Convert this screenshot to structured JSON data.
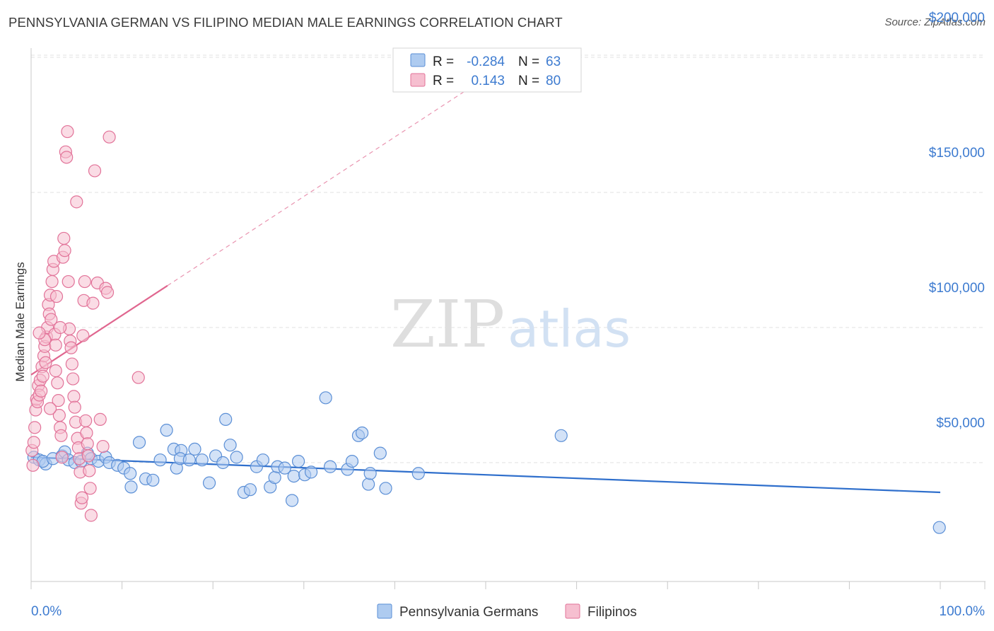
{
  "header": {
    "title": "PENNSYLVANIA GERMAN VS FILIPINO MEDIAN MALE EARNINGS CORRELATION CHART",
    "source": "Source: ZipAtlas.com"
  },
  "watermark": {
    "zip": "ZIP",
    "atlas": "atlas"
  },
  "colors": {
    "blue_fill": "#aecbf0",
    "blue_stroke": "#5b8fd6",
    "blue_line": "#2f6fcc",
    "pink_fill": "#f6bfd0",
    "pink_stroke": "#e27399",
    "pink_line": "#e0668f",
    "tick_label": "#3d7bd0",
    "grid": "#e2e2e2"
  },
  "stats": {
    "r_label": "R =",
    "n_label": "N =",
    "rows": [
      {
        "series": "blue",
        "r": "-0.284",
        "n": "63"
      },
      {
        "series": "pink",
        "r": "0.143",
        "n": "80"
      }
    ]
  },
  "chart_data": {
    "type": "scatter",
    "title": "PENNSYLVANIA GERMAN VS FILIPINO MEDIAN MALE EARNINGS CORRELATION CHART",
    "xlabel": "",
    "ylabel": "Median Male Earnings",
    "xlim": [
      0,
      100
    ],
    "ylim": [
      5000,
      215000
    ],
    "x_tick_labels": [
      "0.0%",
      "100.0%"
    ],
    "y_ticks": [
      50000,
      100000,
      150000,
      200000
    ],
    "y_tick_labels": [
      "$50,000",
      "$100,000",
      "$150,000",
      "$200,000"
    ],
    "grid": true,
    "legend_position": "bottom-center",
    "series": [
      {
        "name": "Pennsylvania Germans",
        "color": "#aecbf0",
        "trend": {
          "x": [
            0,
            100
          ],
          "y": [
            52000,
            39000
          ],
          "style": "solid"
        },
        "points": [
          [
            0.3,
            52000
          ],
          [
            0.9,
            51000
          ],
          [
            1.6,
            49500
          ],
          [
            1.3,
            50500
          ],
          [
            2.4,
            51500
          ],
          [
            3.4,
            52500
          ],
          [
            3.7,
            54000
          ],
          [
            4.1,
            51000
          ],
          [
            4.8,
            50000
          ],
          [
            5.5,
            50500
          ],
          [
            6.2,
            53500
          ],
          [
            6.6,
            51500
          ],
          [
            7.4,
            50500
          ],
          [
            8.2,
            52000
          ],
          [
            8.6,
            50000
          ],
          [
            9.5,
            49000
          ],
          [
            10.2,
            48000
          ],
          [
            10.9,
            46000
          ],
          [
            11.0,
            41000
          ],
          [
            11.9,
            57500
          ],
          [
            12.6,
            44000
          ],
          [
            13.4,
            43500
          ],
          [
            14.2,
            51000
          ],
          [
            14.9,
            62000
          ],
          [
            15.7,
            55000
          ],
          [
            16.0,
            48000
          ],
          [
            16.5,
            54500
          ],
          [
            16.4,
            51500
          ],
          [
            17.4,
            51000
          ],
          [
            18.0,
            55000
          ],
          [
            18.8,
            51000
          ],
          [
            19.6,
            42500
          ],
          [
            20.3,
            52500
          ],
          [
            21.1,
            50000
          ],
          [
            21.4,
            66000
          ],
          [
            21.9,
            56500
          ],
          [
            22.6,
            52000
          ],
          [
            23.4,
            39000
          ],
          [
            24.1,
            40000
          ],
          [
            24.8,
            48500
          ],
          [
            25.5,
            51000
          ],
          [
            26.3,
            41000
          ],
          [
            26.8,
            44500
          ],
          [
            27.1,
            48500
          ],
          [
            27.9,
            48000
          ],
          [
            28.7,
            36000
          ],
          [
            28.9,
            45000
          ],
          [
            29.4,
            50500
          ],
          [
            30.1,
            45500
          ],
          [
            30.8,
            46500
          ],
          [
            32.4,
            74000
          ],
          [
            32.9,
            48500
          ],
          [
            34.8,
            47500
          ],
          [
            35.3,
            50500
          ],
          [
            36.0,
            60000
          ],
          [
            36.4,
            61000
          ],
          [
            37.1,
            42000
          ],
          [
            37.3,
            46000
          ],
          [
            38.4,
            53500
          ],
          [
            39.0,
            40500
          ],
          [
            42.6,
            46000
          ],
          [
            58.3,
            60000
          ],
          [
            99.9,
            26000
          ]
        ]
      },
      {
        "name": "Filipinos",
        "color": "#f6bfd0",
        "trend": {
          "x": [
            0,
            15
          ],
          "y": [
            82500,
            115500
          ],
          "style": "solid",
          "extension": {
            "x": [
              15,
              50
            ],
            "y": [
              115500,
              192500
            ],
            "style": "dashed"
          }
        },
        "points": [
          [
            0.1,
            54500
          ],
          [
            0.2,
            49000
          ],
          [
            0.3,
            57500
          ],
          [
            0.4,
            63000
          ],
          [
            0.5,
            69500
          ],
          [
            0.6,
            73500
          ],
          [
            0.7,
            72500
          ],
          [
            0.8,
            78500
          ],
          [
            0.9,
            75000
          ],
          [
            1.0,
            80500
          ],
          [
            1.1,
            76500
          ],
          [
            1.2,
            85500
          ],
          [
            1.3,
            82000
          ],
          [
            1.4,
            89500
          ],
          [
            1.5,
            93000
          ],
          [
            1.6,
            87000
          ],
          [
            1.7,
            96500
          ],
          [
            1.8,
            100000
          ],
          [
            1.9,
            108500
          ],
          [
            2.0,
            105000
          ],
          [
            2.1,
            112000
          ],
          [
            2.2,
            103000
          ],
          [
            2.3,
            117000
          ],
          [
            2.4,
            121500
          ],
          [
            2.5,
            124500
          ],
          [
            2.6,
            97500
          ],
          [
            2.7,
            93500
          ],
          [
            2.8,
            111500
          ],
          [
            2.9,
            79500
          ],
          [
            3.0,
            73000
          ],
          [
            3.1,
            67500
          ],
          [
            3.2,
            63000
          ],
          [
            3.3,
            60000
          ],
          [
            3.4,
            52000
          ],
          [
            3.5,
            126000
          ],
          [
            3.6,
            133000
          ],
          [
            3.7,
            128500
          ],
          [
            3.8,
            165000
          ],
          [
            3.9,
            163000
          ],
          [
            4.0,
            172500
          ],
          [
            4.1,
            117000
          ],
          [
            4.2,
            99500
          ],
          [
            4.3,
            95000
          ],
          [
            4.4,
            92500
          ],
          [
            4.5,
            86500
          ],
          [
            4.6,
            81000
          ],
          [
            4.7,
            74500
          ],
          [
            4.8,
            70500
          ],
          [
            4.9,
            65000
          ],
          [
            5.0,
            146500
          ],
          [
            5.1,
            59000
          ],
          [
            5.2,
            55500
          ],
          [
            5.3,
            51500
          ],
          [
            5.4,
            46500
          ],
          [
            5.5,
            35000
          ],
          [
            5.6,
            37000
          ],
          [
            5.7,
            97000
          ],
          [
            5.8,
            110000
          ],
          [
            5.9,
            117000
          ],
          [
            6.0,
            65500
          ],
          [
            6.1,
            61000
          ],
          [
            6.2,
            57000
          ],
          [
            6.3,
            52500
          ],
          [
            6.4,
            47000
          ],
          [
            6.5,
            40500
          ],
          [
            6.6,
            30500
          ],
          [
            6.8,
            109000
          ],
          [
            7.0,
            158000
          ],
          [
            7.3,
            116500
          ],
          [
            7.6,
            66000
          ],
          [
            7.9,
            56000
          ],
          [
            8.2,
            114500
          ],
          [
            8.4,
            113000
          ],
          [
            8.6,
            170500
          ],
          [
            11.8,
            81500
          ],
          [
            2.1,
            70000
          ],
          [
            1.5,
            95500
          ],
          [
            3.2,
            100000
          ],
          [
            0.9,
            98000
          ],
          [
            2.7,
            84000
          ]
        ]
      }
    ]
  }
}
